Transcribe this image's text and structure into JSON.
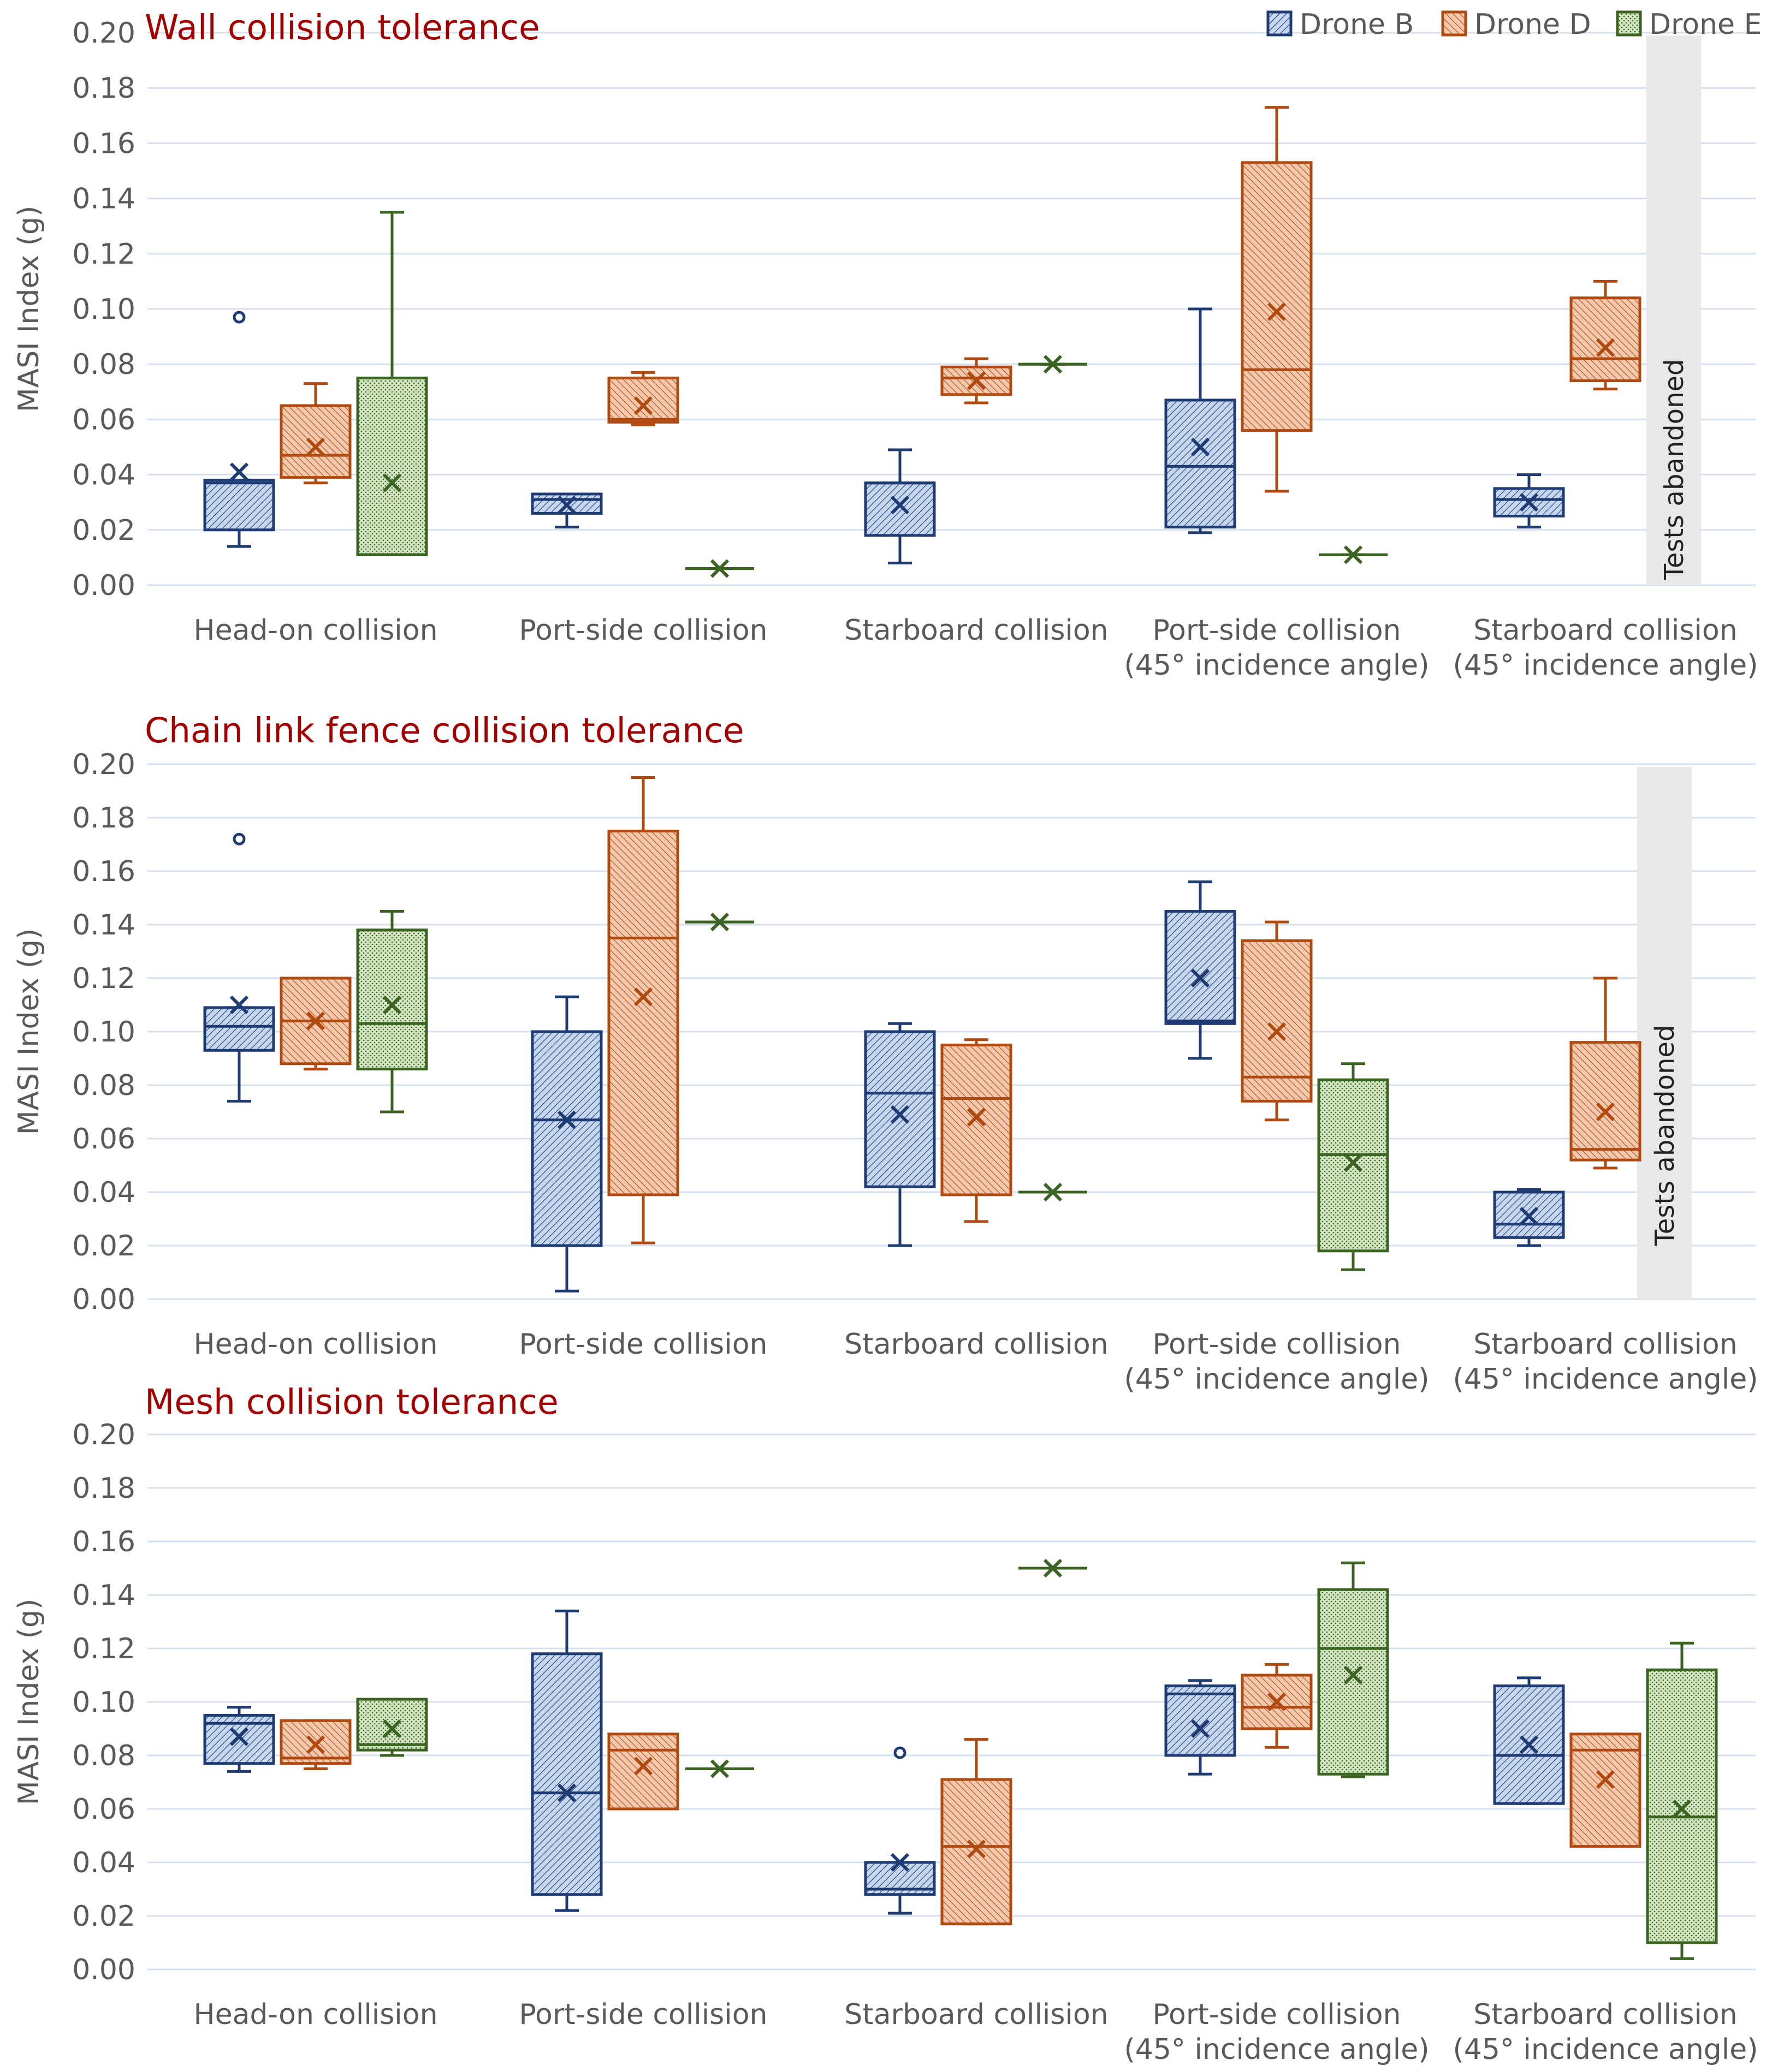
{
  "legend": [
    {
      "name": "Drone B",
      "color": "#1f3b73",
      "fill": "#c5d6ef"
    },
    {
      "name": "Drone D",
      "color": "#b04a10",
      "fill": "#f4c8ad"
    },
    {
      "name": "Drone E",
      "color": "#3b6322",
      "fill": "#d2e6c3"
    }
  ],
  "title_color": "#a30000",
  "chart_data": [
    {
      "type": "box",
      "title": "Wall collision tolerance",
      "ylabel": "MASI Index (g)",
      "ylim": [
        0,
        0.2
      ],
      "yticks": [
        "0.00",
        "0.02",
        "0.04",
        "0.06",
        "0.08",
        "0.10",
        "0.12",
        "0.14",
        "0.16",
        "0.18",
        "0.20"
      ],
      "categories": [
        {
          "line1": "Head-on collision",
          "line2": ""
        },
        {
          "line1": "Port-side collision",
          "line2": ""
        },
        {
          "line1": "Starboard collision",
          "line2": ""
        },
        {
          "line1": "Port-side collision",
          "line2": "(45° incidence angle)"
        },
        {
          "line1": "Starboard collision",
          "line2": "(45° incidence angle)"
        }
      ],
      "abandoned_label": "Tests abandoned",
      "abandoned_after_category": 4,
      "boxes": [
        {
          "cat": 0,
          "series": 0,
          "min": 0.014,
          "q1": 0.02,
          "median": 0.037,
          "q3": 0.038,
          "max": 0.038,
          "mean": 0.041,
          "outliers": [
            0.097
          ]
        },
        {
          "cat": 0,
          "series": 1,
          "min": 0.037,
          "q1": 0.039,
          "median": 0.047,
          "q3": 0.065,
          "max": 0.073,
          "mean": 0.05,
          "outliers": []
        },
        {
          "cat": 0,
          "series": 2,
          "min": 0.011,
          "q1": 0.011,
          "median": 0.011,
          "q3": 0.075,
          "max": 0.135,
          "mean": 0.037,
          "outliers": []
        },
        {
          "cat": 1,
          "series": 0,
          "min": 0.021,
          "q1": 0.026,
          "median": 0.031,
          "q3": 0.033,
          "max": 0.033,
          "mean": 0.029,
          "outliers": []
        },
        {
          "cat": 1,
          "series": 1,
          "min": 0.058,
          "q1": 0.059,
          "median": 0.06,
          "q3": 0.075,
          "max": 0.077,
          "mean": 0.065,
          "outliers": []
        },
        {
          "cat": 1,
          "series": 2,
          "min": 0.006,
          "q1": 0.006,
          "median": 0.006,
          "q3": 0.006,
          "max": 0.006,
          "mean": 0.006,
          "outliers": []
        },
        {
          "cat": 2,
          "series": 0,
          "min": 0.008,
          "q1": 0.018,
          "median": 0.037,
          "q3": 0.037,
          "max": 0.049,
          "mean": 0.029,
          "outliers": []
        },
        {
          "cat": 2,
          "series": 1,
          "min": 0.066,
          "q1": 0.069,
          "median": 0.075,
          "q3": 0.079,
          "max": 0.082,
          "mean": 0.074,
          "outliers": []
        },
        {
          "cat": 2,
          "series": 2,
          "min": 0.08,
          "q1": 0.08,
          "median": 0.08,
          "q3": 0.08,
          "max": 0.08,
          "mean": 0.08,
          "outliers": []
        },
        {
          "cat": 3,
          "series": 0,
          "min": 0.019,
          "q1": 0.021,
          "median": 0.043,
          "q3": 0.067,
          "max": 0.1,
          "mean": 0.05,
          "outliers": []
        },
        {
          "cat": 3,
          "series": 1,
          "min": 0.034,
          "q1": 0.056,
          "median": 0.078,
          "q3": 0.153,
          "max": 0.173,
          "mean": 0.099,
          "outliers": []
        },
        {
          "cat": 3,
          "series": 2,
          "min": 0.011,
          "q1": 0.011,
          "median": 0.011,
          "q3": 0.011,
          "max": 0.011,
          "mean": 0.011,
          "outliers": []
        },
        {
          "cat": 4,
          "series": 0,
          "min": 0.021,
          "q1": 0.025,
          "median": 0.031,
          "q3": 0.035,
          "max": 0.04,
          "mean": 0.03,
          "outliers": []
        },
        {
          "cat": 4,
          "series": 1,
          "min": 0.071,
          "q1": 0.074,
          "median": 0.082,
          "q3": 0.104,
          "max": 0.11,
          "mean": 0.086,
          "outliers": []
        }
      ]
    },
    {
      "type": "box",
      "title": "Chain link fence collision tolerance",
      "ylabel": "MASI Index (g)",
      "ylim": [
        0,
        0.2
      ],
      "yticks": [
        "0.00",
        "0.02",
        "0.04",
        "0.06",
        "0.08",
        "0.10",
        "0.12",
        "0.14",
        "0.16",
        "0.18",
        "0.20"
      ],
      "categories": [
        {
          "line1": "Head-on collision",
          "line2": ""
        },
        {
          "line1": "Port-side collision",
          "line2": ""
        },
        {
          "line1": "Starboard collision",
          "line2": ""
        },
        {
          "line1": "Port-side collision",
          "line2": "(45° incidence angle)"
        },
        {
          "line1": "Starboard collision",
          "line2": "(45° incidence angle)"
        }
      ],
      "abandoned_label": "Tests abandoned",
      "abandoned_after_category": 4,
      "boxes": [
        {
          "cat": 0,
          "series": 0,
          "min": 0.074,
          "q1": 0.093,
          "median": 0.102,
          "q3": 0.109,
          "max": 0.109,
          "mean": 0.11,
          "outliers": [
            0.172
          ]
        },
        {
          "cat": 0,
          "series": 1,
          "min": 0.086,
          "q1": 0.088,
          "median": 0.104,
          "q3": 0.12,
          "max": 0.12,
          "mean": 0.104,
          "outliers": []
        },
        {
          "cat": 0,
          "series": 2,
          "min": 0.07,
          "q1": 0.086,
          "median": 0.103,
          "q3": 0.138,
          "max": 0.145,
          "mean": 0.11,
          "outliers": []
        },
        {
          "cat": 1,
          "series": 0,
          "min": 0.003,
          "q1": 0.02,
          "median": 0.067,
          "q3": 0.1,
          "max": 0.113,
          "mean": 0.067,
          "outliers": []
        },
        {
          "cat": 1,
          "series": 1,
          "min": 0.021,
          "q1": 0.039,
          "median": 0.135,
          "q3": 0.175,
          "max": 0.195,
          "mean": 0.113,
          "outliers": []
        },
        {
          "cat": 1,
          "series": 2,
          "min": 0.141,
          "q1": 0.141,
          "median": 0.141,
          "q3": 0.141,
          "max": 0.141,
          "mean": 0.141,
          "outliers": []
        },
        {
          "cat": 2,
          "series": 0,
          "min": 0.02,
          "q1": 0.042,
          "median": 0.077,
          "q3": 0.1,
          "max": 0.103,
          "mean": 0.069,
          "outliers": []
        },
        {
          "cat": 2,
          "series": 1,
          "min": 0.029,
          "q1": 0.039,
          "median": 0.075,
          "q3": 0.095,
          "max": 0.097,
          "mean": 0.068,
          "outliers": []
        },
        {
          "cat": 2,
          "series": 2,
          "min": 0.04,
          "q1": 0.04,
          "median": 0.04,
          "q3": 0.04,
          "max": 0.04,
          "mean": 0.04,
          "outliers": []
        },
        {
          "cat": 3,
          "series": 0,
          "min": 0.09,
          "q1": 0.103,
          "median": 0.104,
          "q3": 0.145,
          "max": 0.156,
          "mean": 0.12,
          "outliers": []
        },
        {
          "cat": 3,
          "series": 1,
          "min": 0.067,
          "q1": 0.074,
          "median": 0.083,
          "q3": 0.134,
          "max": 0.141,
          "mean": 0.1,
          "outliers": []
        },
        {
          "cat": 3,
          "series": 2,
          "min": 0.011,
          "q1": 0.018,
          "median": 0.054,
          "q3": 0.082,
          "max": 0.088,
          "mean": 0.051,
          "outliers": []
        },
        {
          "cat": 4,
          "series": 0,
          "min": 0.02,
          "q1": 0.023,
          "median": 0.028,
          "q3": 0.04,
          "max": 0.041,
          "mean": 0.031,
          "outliers": []
        },
        {
          "cat": 4,
          "series": 1,
          "min": 0.049,
          "q1": 0.052,
          "median": 0.056,
          "q3": 0.096,
          "max": 0.12,
          "mean": 0.07,
          "outliers": []
        }
      ]
    },
    {
      "type": "box",
      "title": "Mesh collision tolerance",
      "ylabel": "MASI Index (g)",
      "ylim": [
        0,
        0.2
      ],
      "yticks": [
        "0.00",
        "0.02",
        "0.04",
        "0.06",
        "0.08",
        "0.10",
        "0.12",
        "0.14",
        "0.16",
        "0.18",
        "0.20"
      ],
      "categories": [
        {
          "line1": "Head-on collision",
          "line2": ""
        },
        {
          "line1": "Port-side collision",
          "line2": ""
        },
        {
          "line1": "Starboard collision",
          "line2": ""
        },
        {
          "line1": "Port-side collision",
          "line2": "(45° incidence angle)"
        },
        {
          "line1": "Starboard collision",
          "line2": "(45° incidence angle)"
        }
      ],
      "abandoned_label": "",
      "abandoned_after_category": -1,
      "boxes": [
        {
          "cat": 0,
          "series": 0,
          "min": 0.074,
          "q1": 0.077,
          "median": 0.092,
          "q3": 0.095,
          "max": 0.098,
          "mean": 0.087,
          "outliers": []
        },
        {
          "cat": 0,
          "series": 1,
          "min": 0.075,
          "q1": 0.077,
          "median": 0.079,
          "q3": 0.093,
          "max": 0.093,
          "mean": 0.084,
          "outliers": []
        },
        {
          "cat": 0,
          "series": 2,
          "min": 0.08,
          "q1": 0.082,
          "median": 0.084,
          "q3": 0.101,
          "max": 0.101,
          "mean": 0.09,
          "outliers": []
        },
        {
          "cat": 1,
          "series": 0,
          "min": 0.022,
          "q1": 0.028,
          "median": 0.066,
          "q3": 0.118,
          "max": 0.134,
          "mean": 0.066,
          "outliers": []
        },
        {
          "cat": 1,
          "series": 1,
          "min": 0.06,
          "q1": 0.06,
          "median": 0.082,
          "q3": 0.088,
          "max": 0.088,
          "mean": 0.076,
          "outliers": []
        },
        {
          "cat": 1,
          "series": 2,
          "min": 0.075,
          "q1": 0.075,
          "median": 0.075,
          "q3": 0.075,
          "max": 0.075,
          "mean": 0.075,
          "outliers": []
        },
        {
          "cat": 2,
          "series": 0,
          "min": 0.021,
          "q1": 0.028,
          "median": 0.03,
          "q3": 0.04,
          "max": 0.04,
          "mean": 0.04,
          "outliers": [
            0.081
          ]
        },
        {
          "cat": 2,
          "series": 1,
          "min": 0.017,
          "q1": 0.017,
          "median": 0.046,
          "q3": 0.071,
          "max": 0.086,
          "mean": 0.045,
          "outliers": []
        },
        {
          "cat": 2,
          "series": 2,
          "min": 0.15,
          "q1": 0.15,
          "median": 0.15,
          "q3": 0.15,
          "max": 0.15,
          "mean": 0.15,
          "outliers": []
        },
        {
          "cat": 3,
          "series": 0,
          "min": 0.073,
          "q1": 0.08,
          "median": 0.103,
          "q3": 0.106,
          "max": 0.108,
          "mean": 0.09,
          "outliers": []
        },
        {
          "cat": 3,
          "series": 1,
          "min": 0.083,
          "q1": 0.09,
          "median": 0.098,
          "q3": 0.11,
          "max": 0.114,
          "mean": 0.1,
          "outliers": []
        },
        {
          "cat": 3,
          "series": 2,
          "min": 0.072,
          "q1": 0.073,
          "median": 0.12,
          "q3": 0.142,
          "max": 0.152,
          "mean": 0.11,
          "outliers": []
        },
        {
          "cat": 4,
          "series": 0,
          "min": 0.062,
          "q1": 0.062,
          "median": 0.08,
          "q3": 0.106,
          "max": 0.109,
          "mean": 0.084,
          "outliers": []
        },
        {
          "cat": 4,
          "series": 1,
          "min": 0.046,
          "q1": 0.046,
          "median": 0.082,
          "q3": 0.088,
          "max": 0.088,
          "mean": 0.071,
          "outliers": []
        },
        {
          "cat": 4,
          "series": 2,
          "min": 0.004,
          "q1": 0.01,
          "median": 0.057,
          "q3": 0.112,
          "max": 0.122,
          "mean": 0.06,
          "outliers": []
        }
      ]
    }
  ]
}
